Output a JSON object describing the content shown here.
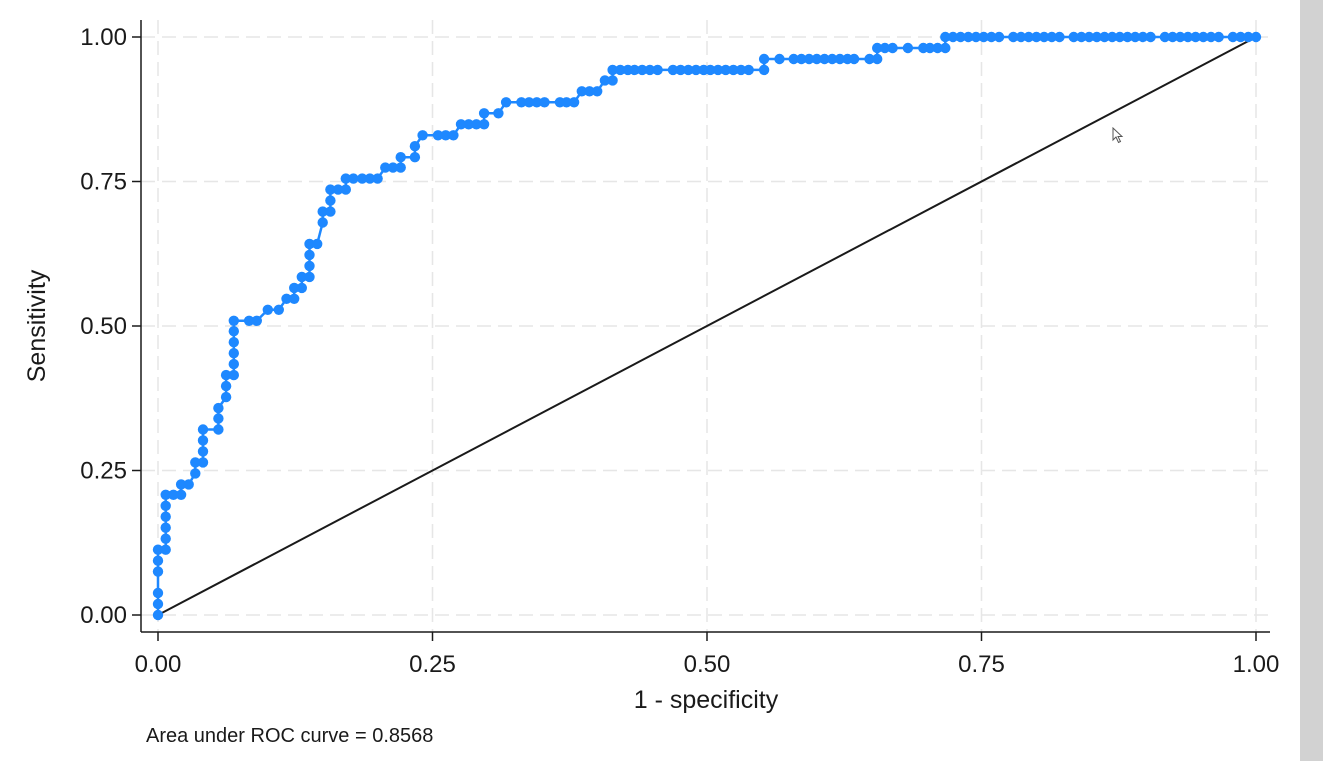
{
  "chart_data": {
    "type": "line",
    "xlabel": "1 - specificity",
    "ylabel": "Sensitivity",
    "note": "Area under ROC curve = 0.8568",
    "xlim": [
      0,
      1
    ],
    "ylim": [
      0,
      1
    ],
    "xticks": [
      "0.00",
      "0.25",
      "0.50",
      "0.75",
      "1.00"
    ],
    "yticks": [
      "0.00",
      "0.25",
      "0.50",
      "0.75",
      "1.00"
    ],
    "grid": true,
    "series": [
      {
        "color": "#1e88ff",
        "marker": "circle",
        "points": [
          [
            0,
            0
          ],
          [
            0,
            0.019
          ],
          [
            0,
            0.038
          ],
          [
            0,
            0.075
          ],
          [
            0,
            0.094
          ],
          [
            0,
            0.113
          ],
          [
            0.007,
            0.113
          ],
          [
            0.007,
            0.132
          ],
          [
            0.007,
            0.151
          ],
          [
            0.007,
            0.17
          ],
          [
            0.007,
            0.189
          ],
          [
            0.007,
            0.208
          ],
          [
            0.014,
            0.208
          ],
          [
            0.021,
            0.208
          ],
          [
            0.021,
            0.226
          ],
          [
            0.028,
            0.226
          ],
          [
            0.034,
            0.245
          ],
          [
            0.034,
            0.264
          ],
          [
            0.041,
            0.264
          ],
          [
            0.041,
            0.283
          ],
          [
            0.041,
            0.302
          ],
          [
            0.041,
            0.321
          ],
          [
            0.055,
            0.321
          ],
          [
            0.055,
            0.34
          ],
          [
            0.055,
            0.358
          ],
          [
            0.062,
            0.377
          ],
          [
            0.062,
            0.396
          ],
          [
            0.062,
            0.415
          ],
          [
            0.069,
            0.415
          ],
          [
            0.069,
            0.434
          ],
          [
            0.069,
            0.453
          ],
          [
            0.069,
            0.472
          ],
          [
            0.069,
            0.491
          ],
          [
            0.069,
            0.509
          ],
          [
            0.083,
            0.509
          ],
          [
            0.09,
            0.509
          ],
          [
            0.1,
            0.528
          ],
          [
            0.11,
            0.528
          ],
          [
            0.117,
            0.547
          ],
          [
            0.124,
            0.547
          ],
          [
            0.124,
            0.566
          ],
          [
            0.131,
            0.566
          ],
          [
            0.131,
            0.585
          ],
          [
            0.138,
            0.585
          ],
          [
            0.138,
            0.604
          ],
          [
            0.138,
            0.623
          ],
          [
            0.138,
            0.642
          ],
          [
            0.145,
            0.642
          ],
          [
            0.15,
            0.679
          ],
          [
            0.15,
            0.698
          ],
          [
            0.157,
            0.698
          ],
          [
            0.157,
            0.717
          ],
          [
            0.157,
            0.736
          ],
          [
            0.164,
            0.736
          ],
          [
            0.171,
            0.736
          ],
          [
            0.171,
            0.755
          ],
          [
            0.178,
            0.755
          ],
          [
            0.186,
            0.755
          ],
          [
            0.193,
            0.755
          ],
          [
            0.2,
            0.755
          ],
          [
            0.207,
            0.774
          ],
          [
            0.214,
            0.774
          ],
          [
            0.221,
            0.774
          ],
          [
            0.221,
            0.792
          ],
          [
            0.234,
            0.792
          ],
          [
            0.234,
            0.811
          ],
          [
            0.241,
            0.83
          ],
          [
            0.255,
            0.83
          ],
          [
            0.262,
            0.83
          ],
          [
            0.269,
            0.83
          ],
          [
            0.276,
            0.849
          ],
          [
            0.283,
            0.849
          ],
          [
            0.29,
            0.849
          ],
          [
            0.297,
            0.849
          ],
          [
            0.297,
            0.868
          ],
          [
            0.31,
            0.868
          ],
          [
            0.317,
            0.887
          ],
          [
            0.331,
            0.887
          ],
          [
            0.338,
            0.887
          ],
          [
            0.345,
            0.887
          ],
          [
            0.352,
            0.887
          ],
          [
            0.366,
            0.887
          ],
          [
            0.372,
            0.887
          ],
          [
            0.379,
            0.887
          ],
          [
            0.386,
            0.906
          ],
          [
            0.393,
            0.906
          ],
          [
            0.4,
            0.906
          ],
          [
            0.407,
            0.925
          ],
          [
            0.414,
            0.925
          ],
          [
            0.414,
            0.943
          ],
          [
            0.421,
            0.943
          ],
          [
            0.428,
            0.943
          ],
          [
            0.434,
            0.943
          ],
          [
            0.441,
            0.943
          ],
          [
            0.448,
            0.943
          ],
          [
            0.455,
            0.943
          ],
          [
            0.469,
            0.943
          ],
          [
            0.476,
            0.943
          ],
          [
            0.483,
            0.943
          ],
          [
            0.49,
            0.943
          ],
          [
            0.497,
            0.943
          ],
          [
            0.503,
            0.943
          ],
          [
            0.51,
            0.943
          ],
          [
            0.517,
            0.943
          ],
          [
            0.524,
            0.943
          ],
          [
            0.531,
            0.943
          ],
          [
            0.538,
            0.943
          ],
          [
            0.552,
            0.943
          ],
          [
            0.552,
            0.962
          ],
          [
            0.566,
            0.962
          ],
          [
            0.579,
            0.962
          ],
          [
            0.586,
            0.962
          ],
          [
            0.593,
            0.962
          ],
          [
            0.6,
            0.962
          ],
          [
            0.607,
            0.962
          ],
          [
            0.614,
            0.962
          ],
          [
            0.621,
            0.962
          ],
          [
            0.628,
            0.962
          ],
          [
            0.634,
            0.962
          ],
          [
            0.648,
            0.962
          ],
          [
            0.655,
            0.962
          ],
          [
            0.655,
            0.981
          ],
          [
            0.662,
            0.981
          ],
          [
            0.669,
            0.981
          ],
          [
            0.683,
            0.981
          ],
          [
            0.697,
            0.981
          ],
          [
            0.703,
            0.981
          ],
          [
            0.71,
            0.981
          ],
          [
            0.717,
            0.981
          ],
          [
            0.717,
            1
          ],
          [
            0.724,
            1
          ],
          [
            0.731,
            1
          ],
          [
            0.738,
            1
          ],
          [
            0.745,
            1
          ],
          [
            0.752,
            1
          ],
          [
            0.759,
            1
          ],
          [
            0.766,
            1
          ],
          [
            0.779,
            1
          ],
          [
            0.786,
            1
          ],
          [
            0.793,
            1
          ],
          [
            0.8,
            1
          ],
          [
            0.807,
            1
          ],
          [
            0.814,
            1
          ],
          [
            0.821,
            1
          ],
          [
            0.834,
            1
          ],
          [
            0.841,
            1
          ],
          [
            0.848,
            1
          ],
          [
            0.855,
            1
          ],
          [
            0.862,
            1
          ],
          [
            0.869,
            1
          ],
          [
            0.876,
            1
          ],
          [
            0.883,
            1
          ],
          [
            0.89,
            1
          ],
          [
            0.897,
            1
          ],
          [
            0.904,
            1
          ],
          [
            0.917,
            1
          ],
          [
            0.924,
            1
          ],
          [
            0.931,
            1
          ],
          [
            0.938,
            1
          ],
          [
            0.945,
            1
          ],
          [
            0.952,
            1
          ],
          [
            0.959,
            1
          ],
          [
            0.966,
            1
          ],
          [
            0.979,
            1
          ],
          [
            0.986,
            1
          ],
          [
            0.993,
            1
          ],
          [
            1,
            1
          ]
        ]
      },
      {
        "color": "#1a1a1a",
        "marker": "none",
        "points": [
          [
            0,
            0
          ],
          [
            1,
            1
          ]
        ]
      }
    ]
  },
  "ui": {
    "cursor_icon": "mouse-pointer-icon",
    "strip_color": "#d2d2d2"
  }
}
